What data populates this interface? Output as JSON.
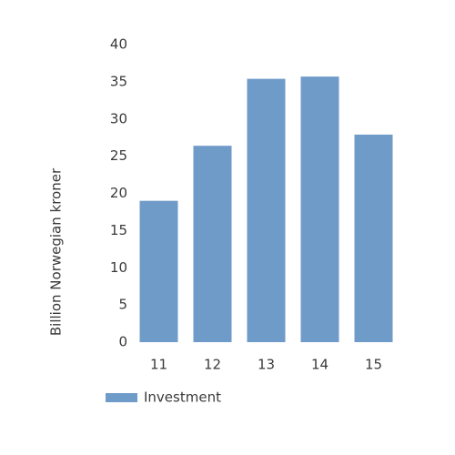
{
  "chart_data": {
    "type": "bar",
    "ylabel": "Billion Norwegian kroner",
    "categories": [
      "11",
      "12",
      "13",
      "14",
      "15"
    ],
    "series": [
      {
        "name": "Investment",
        "color": "#6f9bc8",
        "values": [
          19,
          26.4,
          35.4,
          35.7,
          27.9
        ]
      }
    ],
    "ylim": [
      0,
      40
    ],
    "yticks": [
      0,
      5,
      10,
      15,
      20,
      25,
      30,
      35,
      40
    ],
    "grid": false,
    "legend": "bottom-left"
  }
}
